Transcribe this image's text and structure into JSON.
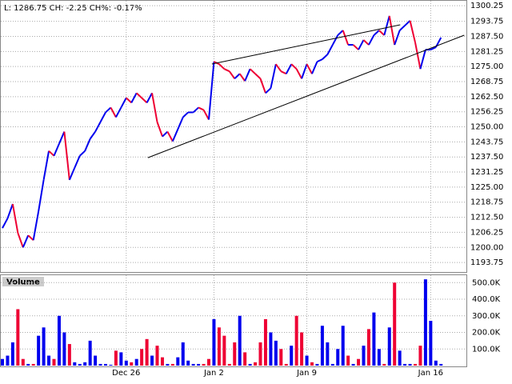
{
  "chart_data": {
    "type": "price-volume",
    "title": "L: 1286.75 CH: -2.25 CH%: -0.17%",
    "volume_label": "Volume",
    "categories": [
      null,
      null,
      null,
      null,
      null,
      null,
      null,
      null,
      null,
      null,
      null,
      null,
      null,
      null,
      null,
      null,
      null,
      null,
      null,
      null,
      null,
      null,
      null,
      null,
      "Dec 26",
      null,
      null,
      null,
      null,
      null,
      null,
      null,
      null,
      null,
      null,
      null,
      null,
      null,
      null,
      null,
      null,
      "Jan 2",
      null,
      null,
      null,
      null,
      null,
      null,
      null,
      null,
      null,
      null,
      null,
      null,
      null,
      null,
      null,
      null,
      null,
      "Jan 9",
      null,
      null,
      null,
      null,
      null,
      null,
      null,
      null,
      null,
      null,
      null,
      null,
      null,
      null,
      null,
      null,
      null,
      null,
      null,
      null,
      null,
      null,
      null,
      "Jan 16",
      null,
      null
    ],
    "series": [
      {
        "values": [
          1208,
          1212,
          1218,
          1206,
          1200,
          1205,
          1203,
          1215,
          1228,
          1240,
          1238,
          1243,
          1248,
          1228,
          1233,
          1238,
          1240,
          1245,
          1248,
          1252,
          1256,
          1258,
          1254,
          1258,
          1262,
          1260,
          1264,
          1262,
          1260,
          1264,
          1252,
          1246,
          1248,
          1244,
          1249,
          1254,
          1256,
          1256,
          1258,
          1257,
          1253,
          1277,
          1276,
          1274,
          1273,
          1270,
          1272,
          1269,
          1274,
          1272,
          1270,
          1264,
          1266,
          1276,
          1273,
          1272,
          1276,
          1274,
          1270,
          1276,
          1272,
          1277,
          1278,
          1280,
          1284,
          1288,
          1290,
          1284,
          1284,
          1282,
          1286,
          1284,
          1288,
          1290,
          1288,
          1296,
          1284,
          1290,
          1292,
          1294,
          1285,
          1274,
          1282,
          1282,
          1283,
          1287
        ]
      },
      {
        "values": [
          40000,
          60000,
          140000,
          340000,
          40000,
          10000,
          10000,
          180000,
          230000,
          60000,
          40000,
          300000,
          200000,
          130000,
          20000,
          10000,
          20000,
          150000,
          60000,
          10000,
          10000,
          5000,
          90000,
          80000,
          30000,
          20000,
          40000,
          100000,
          160000,
          60000,
          120000,
          50000,
          10000,
          10000,
          50000,
          140000,
          30000,
          10000,
          10000,
          10000,
          40000,
          280000,
          230000,
          180000,
          10000,
          140000,
          300000,
          80000,
          10000,
          20000,
          140000,
          280000,
          200000,
          150000,
          100000,
          10000,
          120000,
          300000,
          200000,
          60000,
          20000,
          10000,
          240000,
          140000,
          10000,
          100000,
          240000,
          60000,
          10000,
          40000,
          120000,
          220000,
          320000,
          100000,
          10000,
          230000,
          500000,
          90000,
          10000,
          10000,
          10000,
          120000,
          520000,
          270000,
          30000,
          10000
        ]
      }
    ],
    "up_color": "#0000ee",
    "down_color": "#ee0033",
    "trendlines": [
      {
        "x": [
          28.2,
          89.5
        ],
        "y": [
          1237.2,
          1288.0
        ]
      },
      {
        "x": [
          40.6,
          77.1
        ],
        "y": [
          1276.05,
          1292.3
        ]
      }
    ],
    "ylim": [
      1189.8,
      1301.6
    ],
    "yticks": [
      {
        "value": 1300.25,
        "label": "1300.25"
      },
      1293.75,
      {
        "value": 1287.5,
        "label": "1287.50"
      },
      1281.25,
      {
        "value": 1275,
        "label": "1275.00"
      },
      1268.75,
      {
        "value": 1262.5,
        "label": "1262.50"
      },
      1256.25,
      {
        "value": 1250,
        "label": "1250.00"
      },
      1243.75,
      {
        "value": 1237.5,
        "label": "1237.50"
      },
      1231.25,
      {
        "value": 1225,
        "label": "1225.00"
      },
      1218.75,
      {
        "value": 1212.5,
        "label": "1212.50"
      },
      1206.25,
      {
        "value": 1200,
        "label": "1200.00"
      },
      1193.75
    ],
    "y2lim": [
      0,
      540000
    ],
    "y2ticks": [
      {
        "value": 100000,
        "label": "100.0K"
      },
      {
        "value": 200000,
        "label": "200.0K"
      },
      {
        "value": 300000,
        "label": "300.0K"
      },
      {
        "value": 400000,
        "label": "400.0K"
      },
      {
        "value": 500000,
        "label": "500.0K"
      }
    ],
    "grid": true
  }
}
